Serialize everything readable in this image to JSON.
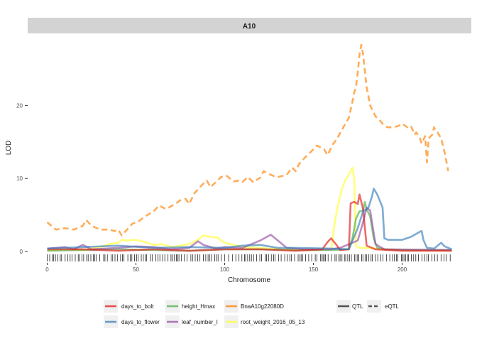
{
  "chart_data": {
    "type": "line",
    "panel_title": "A10",
    "xlabel": "Chromosome",
    "ylabel": "LOD",
    "xlim": [
      0,
      228
    ],
    "ylim": [
      -0.5,
      28.5
    ],
    "x_ticks": [
      0,
      50,
      100,
      150,
      200
    ],
    "y_ticks": [
      0,
      10,
      20
    ],
    "grid": false,
    "legend_position": "bottom",
    "linetype_legend": [
      {
        "label": "QTL",
        "style": "solid"
      },
      {
        "label": "eQTL",
        "style": "dashed"
      }
    ],
    "series": [
      {
        "name": "days_to_bolt",
        "color": "#E41A1C",
        "linetype": "solid",
        "points": [
          [
            0,
            0.3
          ],
          [
            20,
            0.3
          ],
          [
            40,
            0.1
          ],
          [
            60,
            0.3
          ],
          [
            80,
            0.1
          ],
          [
            100,
            0.3
          ],
          [
            120,
            0.3
          ],
          [
            140,
            0.1
          ],
          [
            155,
            0.3
          ],
          [
            158,
            1.3
          ],
          [
            160,
            1.8
          ],
          [
            163,
            0.9
          ],
          [
            165,
            0.2
          ],
          [
            170,
            0.3
          ],
          [
            171,
            6.6
          ],
          [
            173,
            6.8
          ],
          [
            175,
            6.5
          ],
          [
            176,
            7.8
          ],
          [
            178,
            5.8
          ],
          [
            180,
            0.8
          ],
          [
            185,
            0.3
          ],
          [
            200,
            0.1
          ],
          [
            228,
            0.1
          ]
        ]
      },
      {
        "name": "days_to_flower",
        "color": "#377EB8",
        "linetype": "solid",
        "points": [
          [
            0,
            0.4
          ],
          [
            20,
            0.6
          ],
          [
            40,
            0.8
          ],
          [
            60,
            0.5
          ],
          [
            80,
            0.6
          ],
          [
            100,
            0.5
          ],
          [
            110,
            0.8
          ],
          [
            120,
            0.9
          ],
          [
            130,
            0.5
          ],
          [
            140,
            0.5
          ],
          [
            160,
            0.4
          ],
          [
            170,
            0.3
          ],
          [
            175,
            3.2
          ],
          [
            178,
            5.5
          ],
          [
            181,
            6.0
          ],
          [
            183,
            7.5
          ],
          [
            184,
            8.6
          ],
          [
            186,
            7.8
          ],
          [
            189,
            6.0
          ],
          [
            190,
            1.8
          ],
          [
            192,
            1.6
          ],
          [
            200,
            1.6
          ],
          [
            205,
            2.0
          ],
          [
            210,
            2.7
          ],
          [
            211,
            2.8
          ],
          [
            212,
            1.6
          ],
          [
            214,
            0.5
          ],
          [
            218,
            0.4
          ],
          [
            222,
            1.2
          ],
          [
            224,
            0.7
          ],
          [
            228,
            0.3
          ]
        ]
      },
      {
        "name": "height_Hmax",
        "color": "#4DAF4A",
        "linetype": "solid",
        "points": [
          [
            0,
            0.1
          ],
          [
            20,
            0.2
          ],
          [
            40,
            0.3
          ],
          [
            60,
            0.2
          ],
          [
            80,
            0.1
          ],
          [
            100,
            0.3
          ],
          [
            120,
            0.3
          ],
          [
            140,
            0.2
          ],
          [
            160,
            0.2
          ],
          [
            170,
            0.3
          ],
          [
            172,
            1.8
          ],
          [
            174,
            4.5
          ],
          [
            176,
            5.5
          ],
          [
            178,
            5.6
          ],
          [
            179,
            6.8
          ],
          [
            180,
            5.8
          ],
          [
            182,
            4.8
          ],
          [
            184,
            1.8
          ],
          [
            186,
            0.5
          ],
          [
            190,
            0.3
          ],
          [
            200,
            0.2
          ],
          [
            228,
            0.2
          ]
        ]
      },
      {
        "name": "leaf_number_l",
        "color": "#984EA3",
        "linetype": "solid",
        "points": [
          [
            0,
            0.4
          ],
          [
            10,
            0.6
          ],
          [
            15,
            0.3
          ],
          [
            20,
            0.9
          ],
          [
            25,
            0.3
          ],
          [
            40,
            0.5
          ],
          [
            50,
            0.7
          ],
          [
            60,
            0.6
          ],
          [
            70,
            0.3
          ],
          [
            80,
            0.5
          ],
          [
            85,
            1.4
          ],
          [
            88,
            0.9
          ],
          [
            95,
            0.4
          ],
          [
            100,
            0.6
          ],
          [
            110,
            0.5
          ],
          [
            120,
            1.5
          ],
          [
            126,
            2.3
          ],
          [
            130,
            1.5
          ],
          [
            135,
            0.5
          ],
          [
            145,
            0.3
          ],
          [
            160,
            0.3
          ],
          [
            165,
            0.5
          ],
          [
            175,
            1.5
          ],
          [
            178,
            4.0
          ],
          [
            180,
            6.0
          ],
          [
            182,
            5.6
          ],
          [
            185,
            1.0
          ],
          [
            190,
            0.3
          ],
          [
            228,
            0.2
          ]
        ]
      },
      {
        "name": "BnaA10g22080D",
        "color": "#FF7F00",
        "linetype": "dashed",
        "points": [
          [
            0,
            4.0
          ],
          [
            5,
            3.0
          ],
          [
            10,
            3.2
          ],
          [
            15,
            3.0
          ],
          [
            20,
            3.5
          ],
          [
            22,
            4.3
          ],
          [
            25,
            3.5
          ],
          [
            30,
            3.0
          ],
          [
            35,
            3.0
          ],
          [
            38,
            2.8
          ],
          [
            40,
            3.0
          ],
          [
            42,
            2.2
          ],
          [
            45,
            3.0
          ],
          [
            48,
            3.8
          ],
          [
            52,
            4.2
          ],
          [
            55,
            4.8
          ],
          [
            60,
            5.5
          ],
          [
            63,
            6.3
          ],
          [
            67,
            5.8
          ],
          [
            72,
            6.5
          ],
          [
            75,
            7.0
          ],
          [
            78,
            7.2
          ],
          [
            80,
            6.5
          ],
          [
            83,
            8.0
          ],
          [
            85,
            8.5
          ],
          [
            88,
            9.3
          ],
          [
            90,
            9.7
          ],
          [
            92,
            8.8
          ],
          [
            95,
            9.5
          ],
          [
            98,
            10.2
          ],
          [
            101,
            10.4
          ],
          [
            103,
            10.0
          ],
          [
            105,
            9.6
          ],
          [
            108,
            9.7
          ],
          [
            110,
            9.5
          ],
          [
            113,
            10.2
          ],
          [
            116,
            9.5
          ],
          [
            120,
            10.1
          ],
          [
            122,
            11.0
          ],
          [
            125,
            10.6
          ],
          [
            128,
            10.3
          ],
          [
            130,
            10.2
          ],
          [
            135,
            10.5
          ],
          [
            138,
            11.5
          ],
          [
            140,
            11.0
          ],
          [
            142,
            12.0
          ],
          [
            145,
            12.8
          ],
          [
            148,
            13.5
          ],
          [
            152,
            14.5
          ],
          [
            156,
            14.0
          ],
          [
            158,
            13.2
          ],
          [
            161,
            14.7
          ],
          [
            163,
            15.3
          ],
          [
            165,
            16.2
          ],
          [
            168,
            17.5
          ],
          [
            170,
            18.3
          ],
          [
            172,
            20.5
          ],
          [
            173,
            21.8
          ],
          [
            174,
            22.5
          ],
          [
            175,
            24.5
          ],
          [
            176,
            27.0
          ],
          [
            177,
            28.3
          ],
          [
            178,
            27.0
          ],
          [
            180,
            22.5
          ],
          [
            182,
            20.0
          ],
          [
            185,
            18.5
          ],
          [
            188,
            17.8
          ],
          [
            190,
            17.2
          ],
          [
            192,
            17.0
          ],
          [
            195,
            17.0
          ],
          [
            198,
            17.2
          ],
          [
            200,
            17.5
          ],
          [
            203,
            17.0
          ],
          [
            205,
            17.2
          ],
          [
            207,
            16.0
          ],
          [
            208,
            16.3
          ],
          [
            210,
            15.5
          ],
          [
            211,
            14.8
          ],
          [
            213,
            15.8
          ],
          [
            214,
            12.2
          ],
          [
            215,
            15.5
          ],
          [
            217,
            16.0
          ],
          [
            218,
            17.0
          ],
          [
            219,
            16.5
          ],
          [
            220,
            16.3
          ],
          [
            222,
            15.5
          ],
          [
            224,
            13.5
          ],
          [
            226,
            11.0
          ]
        ]
      },
      {
        "name": "root_weight_2016_05_13",
        "color": "#FFFF33",
        "linetype": "solid",
        "points": [
          [
            0,
            0.1
          ],
          [
            10,
            0.3
          ],
          [
            20,
            0.2
          ],
          [
            30,
            0.6
          ],
          [
            35,
            1.0
          ],
          [
            40,
            1.2
          ],
          [
            42,
            1.6
          ],
          [
            45,
            1.5
          ],
          [
            50,
            1.6
          ],
          [
            55,
            1.3
          ],
          [
            60,
            0.9
          ],
          [
            65,
            1.0
          ],
          [
            70,
            0.6
          ],
          [
            75,
            0.8
          ],
          [
            80,
            1.0
          ],
          [
            85,
            1.6
          ],
          [
            88,
            2.2
          ],
          [
            92,
            2.0
          ],
          [
            96,
            1.9
          ],
          [
            98,
            1.5
          ],
          [
            100,
            1.2
          ],
          [
            110,
            0.6
          ],
          [
            120,
            0.5
          ],
          [
            130,
            0.3
          ],
          [
            140,
            0.2
          ],
          [
            150,
            0.2
          ],
          [
            160,
            0.3
          ],
          [
            162,
            4.0
          ],
          [
            164,
            6.5
          ],
          [
            166,
            8.5
          ],
          [
            168,
            9.8
          ],
          [
            170,
            10.5
          ],
          [
            172,
            11.5
          ],
          [
            173,
            10.0
          ],
          [
            174,
            0.8
          ],
          [
            176,
            0.5
          ],
          [
            180,
            0.5
          ],
          [
            190,
            0.3
          ],
          [
            228,
            0.1
          ]
        ]
      }
    ]
  }
}
